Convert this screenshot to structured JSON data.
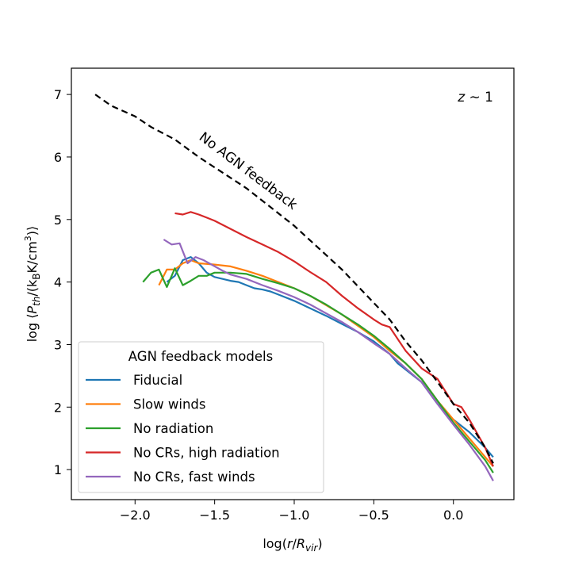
{
  "chart_data": {
    "type": "line",
    "xlabel_main": "log(",
    "xlabel_var": "r",
    "xlabel_slash": "/",
    "xlabel_R": "R",
    "xlabel_sub": "vir",
    "xlabel_close": ")",
    "ylabel_prefix": "log ⟨",
    "ylabel_P": "P",
    "ylabel_Psub": "th",
    "ylabel_mid": "/(k",
    "ylabel_Bsub": "B",
    "ylabel_unit": "K/cm",
    "ylabel_sup": "3",
    "ylabel_suffix": ")⟩",
    "xlim": [
      -2.4,
      0.38
    ],
    "ylim": [
      0.52,
      7.42
    ],
    "xticks": [
      -2.0,
      -1.5,
      -1.0,
      -0.5,
      0.0
    ],
    "xtick_labels": [
      "−2.0",
      "−1.5",
      "−1.0",
      "−0.5",
      "0.0"
    ],
    "yticks": [
      1,
      2,
      3,
      4,
      5,
      6,
      7
    ],
    "ytick_labels": [
      "1",
      "2",
      "3",
      "4",
      "5",
      "6",
      "7"
    ],
    "redshift_var": "z",
    "redshift_text": " ∼ 1",
    "annotation": "No AGN feedback",
    "legend_title": "AGN feedback models",
    "legend_position": "lower-left",
    "grid": false,
    "reference": {
      "style": "dashed",
      "color": "#000000",
      "x": [
        -2.25,
        -2.15,
        -2.0,
        -1.9,
        -1.75,
        -1.6,
        -1.45,
        -1.3,
        -1.15,
        -1.0,
        -0.85,
        -0.7,
        -0.55,
        -0.4,
        -0.3,
        -0.2,
        -0.1,
        0.0,
        0.1,
        0.2,
        0.25
      ],
      "y": [
        7.0,
        6.82,
        6.65,
        6.48,
        6.28,
        6.0,
        5.75,
        5.5,
        5.2,
        4.9,
        4.55,
        4.2,
        3.8,
        3.4,
        3.05,
        2.75,
        2.4,
        2.05,
        1.75,
        1.35,
        1.1
      ]
    },
    "series": [
      {
        "name": "Fiducial",
        "color": "#1f77b4",
        "x": [
          -1.8,
          -1.75,
          -1.7,
          -1.65,
          -1.6,
          -1.55,
          -1.5,
          -1.45,
          -1.4,
          -1.35,
          -1.3,
          -1.25,
          -1.2,
          -1.15,
          -1.1,
          -1.0,
          -0.9,
          -0.8,
          -0.7,
          -0.6,
          -0.5,
          -0.4,
          -0.35,
          -0.3,
          -0.2,
          -0.1,
          0.0,
          0.1,
          0.2,
          0.25
        ],
        "y": [
          4.0,
          4.1,
          4.35,
          4.4,
          4.3,
          4.15,
          4.08,
          4.05,
          4.02,
          4.0,
          3.95,
          3.9,
          3.88,
          3.85,
          3.8,
          3.7,
          3.58,
          3.46,
          3.33,
          3.2,
          3.05,
          2.85,
          2.7,
          2.6,
          2.4,
          2.05,
          1.8,
          1.6,
          1.35,
          1.2
        ]
      },
      {
        "name": "Slow winds",
        "color": "#ff7f0e",
        "x": [
          -1.85,
          -1.8,
          -1.75,
          -1.7,
          -1.65,
          -1.6,
          -1.5,
          -1.4,
          -1.3,
          -1.2,
          -1.1,
          -1.0,
          -0.9,
          -0.8,
          -0.7,
          -0.6,
          -0.5,
          -0.4,
          -0.3,
          -0.2,
          -0.1,
          0.0,
          0.1,
          0.2,
          0.25
        ],
        "y": [
          3.95,
          4.2,
          4.2,
          4.3,
          4.35,
          4.3,
          4.28,
          4.25,
          4.18,
          4.1,
          4.0,
          3.9,
          3.78,
          3.63,
          3.48,
          3.3,
          3.12,
          2.9,
          2.7,
          2.45,
          2.1,
          1.8,
          1.5,
          1.2,
          1.05
        ]
      },
      {
        "name": "No radiation",
        "color": "#2ca02c",
        "x": [
          -1.95,
          -1.9,
          -1.85,
          -1.8,
          -1.75,
          -1.7,
          -1.65,
          -1.6,
          -1.55,
          -1.5,
          -1.4,
          -1.3,
          -1.2,
          -1.1,
          -1.0,
          -0.9,
          -0.8,
          -0.7,
          -0.6,
          -0.5,
          -0.4,
          -0.3,
          -0.2,
          -0.1,
          0.0,
          0.1,
          0.2,
          0.25
        ],
        "y": [
          4.0,
          4.15,
          4.2,
          3.92,
          4.22,
          3.95,
          4.02,
          4.1,
          4.1,
          4.15,
          4.15,
          4.13,
          4.05,
          3.98,
          3.9,
          3.78,
          3.64,
          3.48,
          3.32,
          3.14,
          2.93,
          2.7,
          2.45,
          2.1,
          1.75,
          1.45,
          1.15,
          0.95
        ]
      },
      {
        "name": "No CRs, high radiation",
        "color": "#d62728",
        "x": [
          -1.75,
          -1.7,
          -1.65,
          -1.6,
          -1.55,
          -1.5,
          -1.4,
          -1.3,
          -1.2,
          -1.1,
          -1.0,
          -0.9,
          -0.8,
          -0.7,
          -0.6,
          -0.5,
          -0.45,
          -0.4,
          -0.3,
          -0.2,
          -0.1,
          0.0,
          0.05,
          0.1,
          0.2,
          0.25
        ],
        "y": [
          5.1,
          5.08,
          5.12,
          5.08,
          5.03,
          4.98,
          4.85,
          4.72,
          4.6,
          4.48,
          4.33,
          4.16,
          4.0,
          3.78,
          3.58,
          3.4,
          3.32,
          3.28,
          2.9,
          2.62,
          2.45,
          2.05,
          2.0,
          1.8,
          1.35,
          1.05
        ]
      },
      {
        "name": "No CRs, fast winds",
        "color": "#9467bd",
        "x": [
          -1.82,
          -1.77,
          -1.72,
          -1.67,
          -1.62,
          -1.57,
          -1.52,
          -1.45,
          -1.4,
          -1.3,
          -1.2,
          -1.1,
          -1.0,
          -0.9,
          -0.8,
          -0.7,
          -0.6,
          -0.5,
          -0.4,
          -0.3,
          -0.2,
          -0.1,
          0.0,
          0.1,
          0.2,
          0.25
        ],
        "y": [
          4.68,
          4.6,
          4.62,
          4.3,
          4.4,
          4.35,
          4.28,
          4.18,
          4.12,
          4.05,
          3.95,
          3.86,
          3.76,
          3.64,
          3.5,
          3.36,
          3.2,
          3.02,
          2.85,
          2.62,
          2.4,
          2.05,
          1.72,
          1.4,
          1.05,
          0.82
        ]
      }
    ]
  }
}
